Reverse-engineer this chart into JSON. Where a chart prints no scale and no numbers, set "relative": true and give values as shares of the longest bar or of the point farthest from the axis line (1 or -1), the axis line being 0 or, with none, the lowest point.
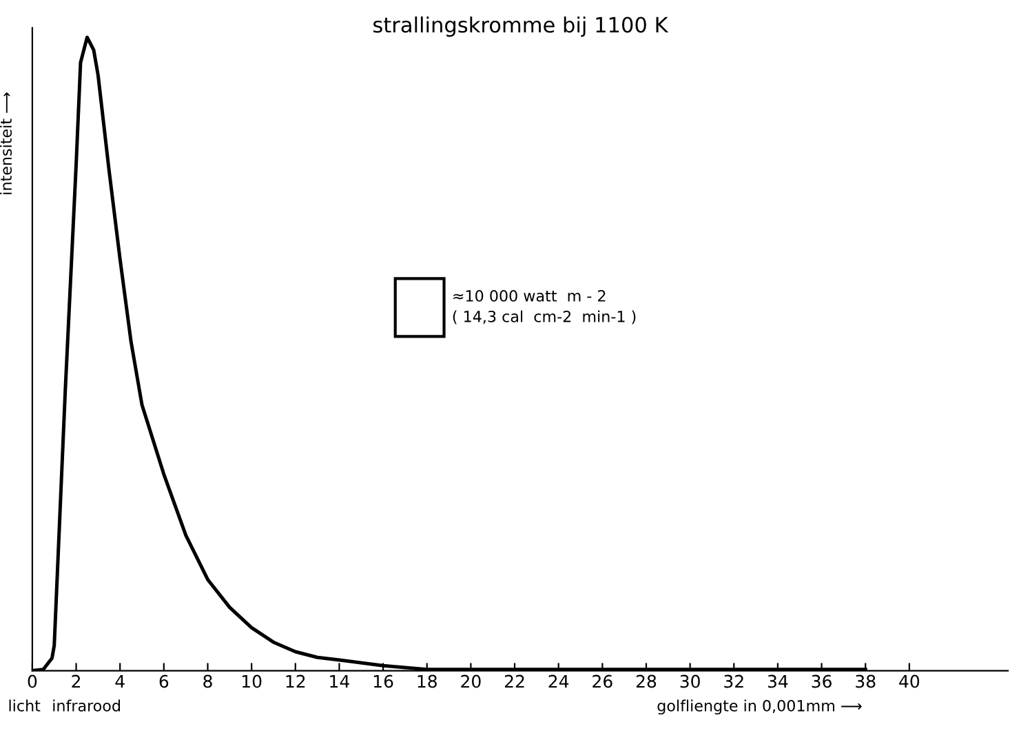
{
  "chart_data": {
    "type": "line",
    "title": "strallingskromme bij 1100 K",
    "xlabel": "golfliengte in 0,001mm ⟶",
    "ylabel": "intensiteit ⟶",
    "relative": true,
    "x": [
      0,
      0.5,
      0.9,
      1.0,
      1.5,
      2.0,
      2.2,
      2.5,
      2.8,
      3.0,
      3.5,
      4.0,
      4.5,
      5,
      6,
      7,
      8,
      9,
      10,
      11,
      12,
      13,
      14,
      16,
      18,
      20,
      25,
      30,
      38
    ],
    "series": [
      {
        "color": "#000000",
        "values": [
          0,
          0.002,
          0.02,
          0.04,
          0.44,
          0.8,
          0.96,
          1.0,
          0.98,
          0.94,
          0.79,
          0.65,
          0.52,
          0.42,
          0.31,
          0.214,
          0.144,
          0.1,
          0.068,
          0.045,
          0.03,
          0.021,
          0.017,
          0.008,
          0.002,
          0.002,
          0.002,
          0.002,
          0.002
        ]
      }
    ],
    "xlim": [
      0,
      44.5
    ],
    "xticks": [
      0,
      2,
      4,
      6,
      8,
      10,
      12,
      14,
      16,
      18,
      20,
      22,
      24,
      26,
      28,
      30,
      32,
      34,
      36,
      38,
      40
    ],
    "annotations": [
      "licht",
      "infrarood",
      "≈10 000 watt  m - 2\n( 14,3 cal  cm-2  min-1 )"
    ],
    "grid": false,
    "legend": false,
    "marker": "none",
    "line_style": "solid"
  }
}
